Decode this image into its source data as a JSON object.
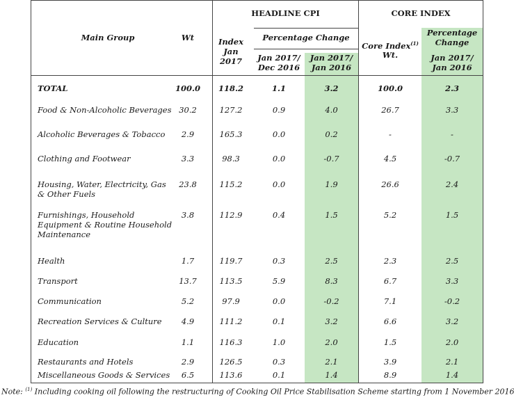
{
  "header": {
    "headline_cpi": "HEADLINE CPI",
    "core_index": "CORE INDEX",
    "main_group": "Main Group",
    "wt": "Wt",
    "index_line1": "Index",
    "index_line2": "Jan",
    "index_line3": "2017",
    "percentage_change": "Percentage Change",
    "col_jan_dec_1": "Jan 2017/",
    "col_jan_dec_2": "Dec 2016",
    "col_jan_jan_1": "Jan 2017/",
    "col_jan_jan_2": "Jan 2016",
    "core_index_wt_1": "Core Index",
    "core_index_wt_sup": "(1)",
    "core_index_wt_2": "Wt.",
    "core_pct_1": "Percentage",
    "core_pct_2": "Change",
    "core_jan_jan_1": "Jan 2017/",
    "core_jan_jan_2": "Jan 2016"
  },
  "rows": [
    {
      "group": [
        "TOTAL"
      ],
      "wt": "100.0",
      "index": "118.2",
      "mom": "1.1",
      "yoy": "3.2",
      "core_wt": "100.0",
      "core_yoy": "2.3",
      "bold": true
    },
    {
      "group": [
        "Food & Non-Alcoholic Beverages"
      ],
      "wt": "30.2",
      "index": "127.2",
      "mom": "0.9",
      "yoy": "4.0",
      "core_wt": "26.7",
      "core_yoy": "3.3"
    },
    {
      "group": [
        "Alcoholic Beverages & Tobacco"
      ],
      "wt": "2.9",
      "index": "165.3",
      "mom": "0.0",
      "yoy": "0.2",
      "core_wt": "-",
      "core_yoy": "-"
    },
    {
      "group": [
        "Clothing and Footwear"
      ],
      "wt": "3.3",
      "index": "98.3",
      "mom": "0.0",
      "yoy": "-0.7",
      "core_wt": "4.5",
      "core_yoy": "-0.7"
    },
    {
      "group": [
        "Housing, Water, Electricity, Gas",
        "& Other Fuels"
      ],
      "wt": "23.8",
      "index": "115.2",
      "mom": "0.0",
      "yoy": "1.9",
      "core_wt": "26.6",
      "core_yoy": "2.4"
    },
    {
      "group": [
        "Furnishings, Household",
        "Equipment & Routine Household",
        "Maintenance"
      ],
      "wt": "3.8",
      "index": "112.9",
      "mom": "0.4",
      "yoy": "1.5",
      "core_wt": "5.2",
      "core_yoy": "1.5"
    },
    {
      "group": [
        "Health"
      ],
      "wt": "1.7",
      "index": "119.7",
      "mom": "0.3",
      "yoy": "2.5",
      "core_wt": "2.3",
      "core_yoy": "2.5"
    },
    {
      "group": [
        "Transport"
      ],
      "wt": "13.7",
      "index": "113.5",
      "mom": "5.9",
      "yoy": "8.3",
      "core_wt": "6.7",
      "core_yoy": "3.3"
    },
    {
      "group": [
        "Communication"
      ],
      "wt": "5.2",
      "index": "97.9",
      "mom": "0.0",
      "yoy": "-0.2",
      "core_wt": "7.1",
      "core_yoy": "-0.2"
    },
    {
      "group": [
        "Recreation Services & Culture"
      ],
      "wt": "4.9",
      "index": "111.2",
      "mom": "0.1",
      "yoy": "3.2",
      "core_wt": "6.6",
      "core_yoy": "3.2"
    },
    {
      "group": [
        "Education"
      ],
      "wt": "1.1",
      "index": "116.3",
      "mom": "1.0",
      "yoy": "2.0",
      "core_wt": "1.5",
      "core_yoy": "2.0"
    },
    {
      "group": [
        "Restaurants and Hotels"
      ],
      "wt": "2.9",
      "index": "126.5",
      "mom": "0.3",
      "yoy": "2.1",
      "core_wt": "3.9",
      "core_yoy": "2.1"
    },
    {
      "group": [
        "Miscellaneous Goods & Services"
      ],
      "wt": "6.5",
      "index": "113.6",
      "mom": "0.1",
      "yoy": "1.4",
      "core_wt": "8.9",
      "core_yoy": "1.4"
    }
  ],
  "note": {
    "prefix": "Note: ",
    "sup": "(1)",
    "text": " Including cooking oil following the restructuring of Cooking Oil Price Stabilisation Scheme starting from 1 November 2016"
  }
}
